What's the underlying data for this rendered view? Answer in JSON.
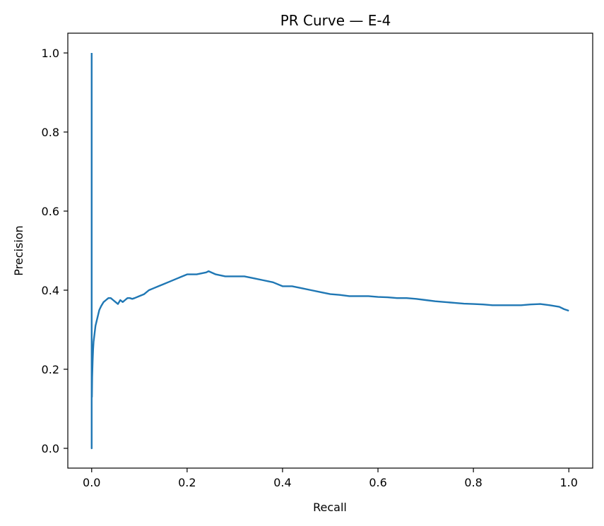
{
  "chart_data": {
    "type": "line",
    "title": "PR Curve — E-4",
    "xlabel": "Recall",
    "ylabel": "Precision",
    "xlim": [
      -0.05,
      1.05
    ],
    "ylim": [
      -0.05,
      1.05
    ],
    "xticks": [
      0.0,
      0.2,
      0.4,
      0.6,
      0.8,
      1.0
    ],
    "yticks": [
      0.0,
      0.2,
      0.4,
      0.6,
      0.8,
      1.0
    ],
    "tick_labels_x": [
      "0.0",
      "0.2",
      "0.4",
      "0.6",
      "0.8",
      "1.0"
    ],
    "tick_labels_y": [
      "0.0",
      "0.2",
      "0.4",
      "0.6",
      "0.8",
      "1.0"
    ],
    "grid": false,
    "legend": "none",
    "series": [
      {
        "color": "#1f77b4",
        "x": [
          0.0,
          0.0,
          0.0,
          0.0005,
          0.001,
          0.002,
          0.003,
          0.004,
          0.006,
          0.008,
          0.01,
          0.013,
          0.016,
          0.02,
          0.025,
          0.03,
          0.035,
          0.04,
          0.045,
          0.05,
          0.055,
          0.06,
          0.065,
          0.07,
          0.075,
          0.08,
          0.085,
          0.09,
          0.1,
          0.11,
          0.12,
          0.13,
          0.14,
          0.15,
          0.16,
          0.18,
          0.2,
          0.22,
          0.24,
          0.245,
          0.26,
          0.28,
          0.3,
          0.32,
          0.34,
          0.36,
          0.38,
          0.4,
          0.42,
          0.44,
          0.46,
          0.48,
          0.5,
          0.52,
          0.54,
          0.56,
          0.58,
          0.6,
          0.62,
          0.64,
          0.66,
          0.68,
          0.7,
          0.72,
          0.74,
          0.76,
          0.78,
          0.8,
          0.82,
          0.84,
          0.86,
          0.88,
          0.9,
          0.92,
          0.94,
          0.96,
          0.98,
          0.99,
          1.0
        ],
        "y": [
          1.0,
          0.0,
          0.2,
          0.13,
          0.18,
          0.22,
          0.25,
          0.27,
          0.29,
          0.31,
          0.32,
          0.335,
          0.35,
          0.36,
          0.37,
          0.375,
          0.38,
          0.38,
          0.375,
          0.37,
          0.365,
          0.375,
          0.37,
          0.375,
          0.38,
          0.38,
          0.378,
          0.38,
          0.385,
          0.39,
          0.4,
          0.405,
          0.41,
          0.415,
          0.42,
          0.43,
          0.44,
          0.44,
          0.445,
          0.448,
          0.44,
          0.435,
          0.435,
          0.435,
          0.43,
          0.425,
          0.42,
          0.41,
          0.41,
          0.405,
          0.4,
          0.395,
          0.39,
          0.388,
          0.385,
          0.385,
          0.385,
          0.383,
          0.382,
          0.38,
          0.38,
          0.378,
          0.375,
          0.372,
          0.37,
          0.368,
          0.366,
          0.365,
          0.364,
          0.362,
          0.362,
          0.362,
          0.362,
          0.364,
          0.365,
          0.362,
          0.358,
          0.352,
          0.348
        ]
      }
    ]
  }
}
